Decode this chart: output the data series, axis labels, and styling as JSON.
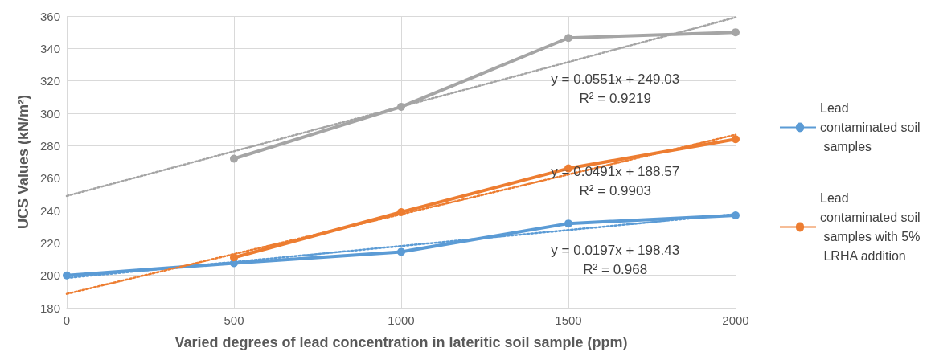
{
  "chart_data": {
    "type": "line",
    "xlabel": "Varied degrees of lead concentration in lateritic soil sample (ppm)",
    "ylabel": "UCS Values (kN/m²)",
    "xlim": [
      0,
      2000
    ],
    "xticks": [
      0,
      500,
      1000,
      1500,
      2000
    ],
    "ylim": [
      180,
      360
    ],
    "yticks": [
      180,
      200,
      220,
      240,
      260,
      280,
      300,
      320,
      340,
      360
    ],
    "grid": true,
    "legend": "right",
    "marker": "circle",
    "line_style": "solid",
    "series": [
      {
        "name": "Lead contaminated soil samples",
        "color": "#5b9bd5",
        "x": [
          0,
          500,
          1000,
          1500,
          2000
        ],
        "values": [
          200,
          207.5,
          214.5,
          232,
          237
        ]
      },
      {
        "name": "Lead contaminated soil samples with 5% LRHA addition",
        "color": "#ed7d31",
        "x": [
          500,
          1000,
          1500,
          2000
        ],
        "values": [
          211,
          239,
          266,
          284
        ]
      },
      {
        "color": "#a5a5a5",
        "x": [
          500,
          1000,
          1500,
          2000
        ],
        "values": [
          272,
          304,
          346.5,
          350
        ]
      },
      {
        "color": "#5b9bd5",
        "x": [
          0,
          2000
        ],
        "values": [
          198.4,
          237.8
        ],
        "line_style": "dotted",
        "marker": "none"
      },
      {
        "color": "#ed7d31",
        "x": [
          0,
          2000
        ],
        "values": [
          188.6,
          286.8
        ],
        "line_style": "dotted",
        "marker": "none"
      },
      {
        "color": "#a5a5a5",
        "x": [
          0,
          2000
        ],
        "values": [
          249,
          359.2
        ],
        "line_style": "dotted",
        "marker": "none"
      }
    ],
    "annotations": [
      "y = 0.0551x + 249.03\nR² = 0.9219",
      "y = 0.0491x + 188.57\nR² = 0.9903",
      "y = 0.0197x + 198.43\nR² = 0.968"
    ]
  }
}
